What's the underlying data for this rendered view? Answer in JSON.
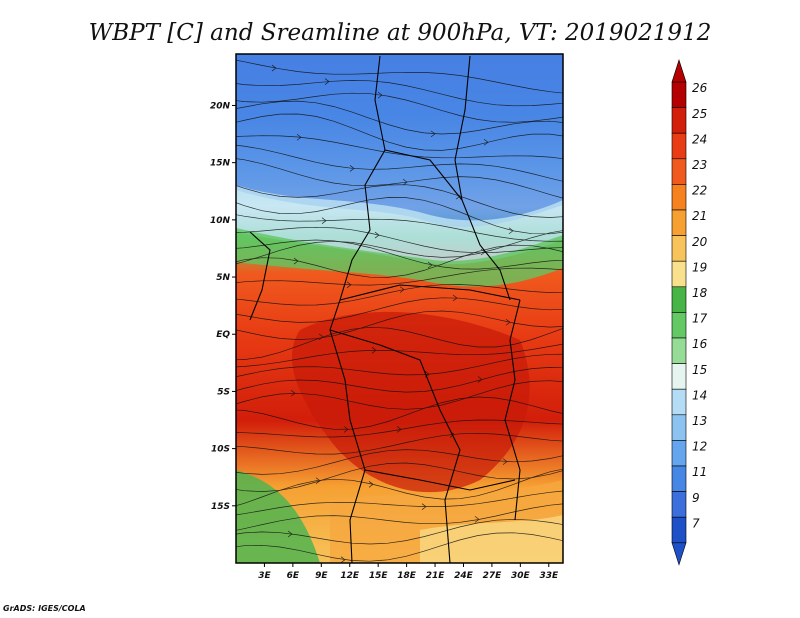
{
  "chart_data": {
    "type": "heatmap",
    "title": "WBPT [C] and Sreamline at 900hPa, VT: 2019021912",
    "x_ticks": [
      "3E",
      "6E",
      "9E",
      "12E",
      "15E",
      "18E",
      "21E",
      "24E",
      "27E",
      "30E",
      "33E"
    ],
    "y_ticks": [
      "20N",
      "15N",
      "10N",
      "5N",
      "EQ",
      "5S",
      "10S",
      "15S"
    ],
    "xlim": [
      0,
      34.5
    ],
    "ylim": [
      -20,
      24.5
    ],
    "colorbar": {
      "levels": [
        "26",
        "25",
        "24",
        "23",
        "22",
        "21",
        "20",
        "19",
        "18",
        "17",
        "16",
        "15",
        "14",
        "13",
        "12",
        "11",
        "9",
        "7"
      ],
      "colors": [
        "#b40000",
        "#d21e0a",
        "#e83c14",
        "#f05a1e",
        "#f5821e",
        "#f6a032",
        "#f7c35a",
        "#f9e08c",
        "#46b446",
        "#64c864",
        "#96dc96",
        "#e6f5f0",
        "#b4dcf5",
        "#8cc3f0",
        "#64a5ee",
        "#4687e6",
        "#3c6edc",
        "#1e50c8"
      ]
    },
    "grid": false,
    "legend": "right-colorbar"
  },
  "footer": {
    "credit": "GrADS: IGES/COLA"
  }
}
